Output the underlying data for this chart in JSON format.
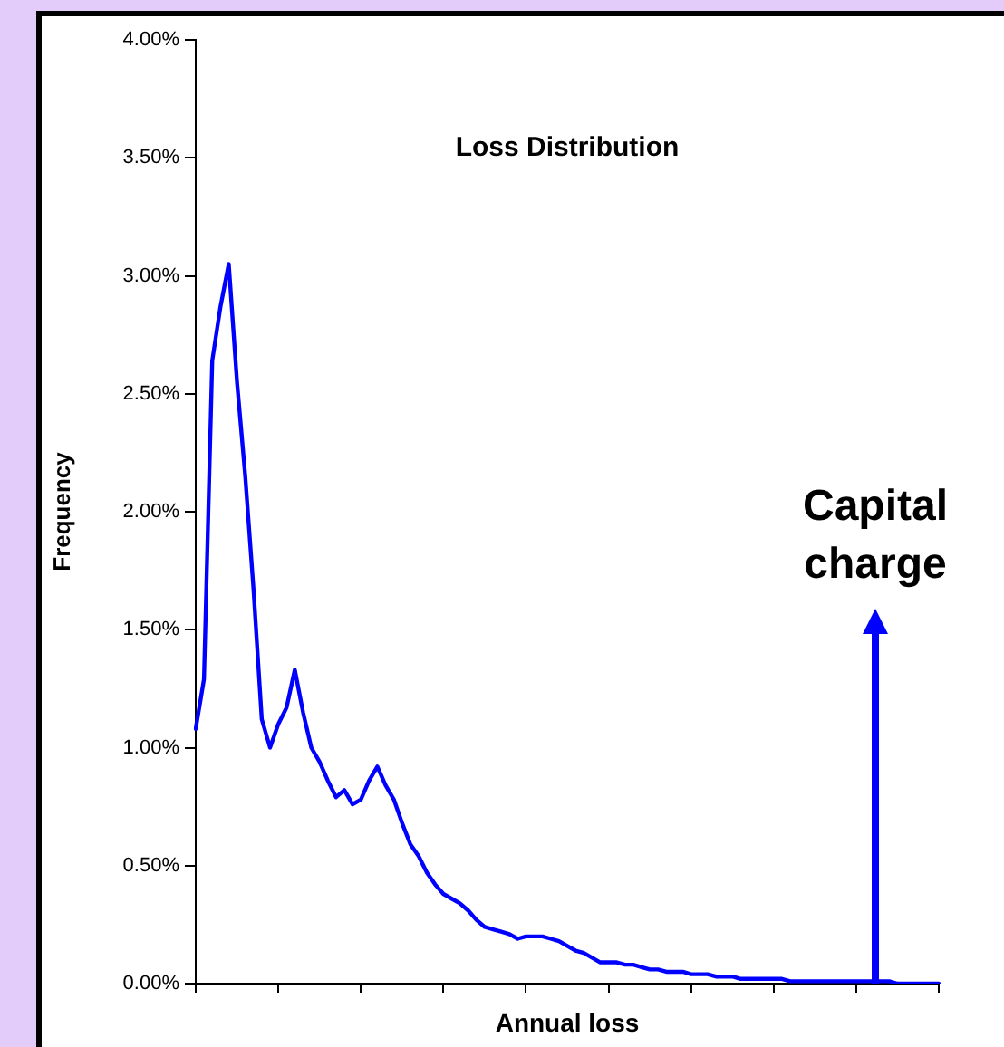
{
  "chart_data": {
    "type": "line",
    "title": "Loss Distribution",
    "xlabel": "Annual loss",
    "ylabel": "Frequency",
    "categories": [
      null,
      null,
      null,
      null,
      null,
      null,
      null,
      null,
      null,
      null,
      null,
      null,
      null,
      null,
      null,
      null,
      null,
      null,
      null,
      null,
      null,
      null,
      null,
      null,
      null,
      null,
      null,
      null,
      null,
      null,
      null,
      null,
      null,
      null,
      null,
      null,
      null,
      null,
      null,
      null,
      null,
      null,
      null,
      null,
      null,
      null,
      null,
      null,
      null,
      null,
      null,
      null,
      null,
      null,
      null,
      null,
      null,
      null,
      null,
      null,
      null,
      null,
      null,
      null,
      null,
      null,
      null,
      null,
      null,
      null,
      null,
      null,
      null,
      null,
      null,
      null,
      null,
      null,
      null,
      null,
      null,
      null,
      null,
      null,
      null,
      null,
      null,
      null,
      null,
      null,
      null
    ],
    "ylim": [
      0,
      4
    ],
    "yticks": [
      {
        "value": 0,
        "label": "0.00%"
      },
      {
        "value": 0.5,
        "label": "0.50%"
      },
      {
        "value": 1,
        "label": "1.00%"
      },
      {
        "value": 1.5,
        "label": "1.50%"
      },
      {
        "value": 2,
        "label": "2.00%"
      },
      {
        "value": 2.5,
        "label": "2.50%"
      },
      {
        "value": 3,
        "label": "3.00%"
      },
      {
        "value": 3.5,
        "label": "3.50%"
      },
      {
        "value": 4,
        "label": "4.00%"
      }
    ],
    "tick_labels": "y",
    "grid": false,
    "legend": false,
    "marker": "none",
    "line_style": "solid",
    "annotations": [
      "Capital charge"
    ],
    "series": [
      {
        "color": "#0000ff",
        "values": [
          1.08,
          1.29,
          2.64,
          2.87,
          3.05,
          2.55,
          2.15,
          1.67,
          1.12,
          1.0,
          1.1,
          1.17,
          1.33,
          1.15,
          1.0,
          0.94,
          0.86,
          0.79,
          0.82,
          0.76,
          0.78,
          0.86,
          0.92,
          0.84,
          0.78,
          0.68,
          0.59,
          0.54,
          0.47,
          0.42,
          0.38,
          0.36,
          0.34,
          0.31,
          0.27,
          0.24,
          0.23,
          0.22,
          0.21,
          0.19,
          0.2,
          0.2,
          0.2,
          0.19,
          0.18,
          0.16,
          0.14,
          0.13,
          0.11,
          0.09,
          0.09,
          0.09,
          0.08,
          0.08,
          0.07,
          0.06,
          0.06,
          0.05,
          0.05,
          0.05,
          0.04,
          0.04,
          0.04,
          0.03,
          0.03,
          0.03,
          0.02,
          0.02,
          0.02,
          0.02,
          0.02,
          0.02,
          0.01,
          0.01,
          0.01,
          0.01,
          0.01,
          0.01,
          0.01,
          0.01,
          0.01,
          0.01,
          0.01,
          0.01,
          0.01,
          0,
          0,
          0,
          0,
          0,
          0
        ]
      }
    ]
  }
}
